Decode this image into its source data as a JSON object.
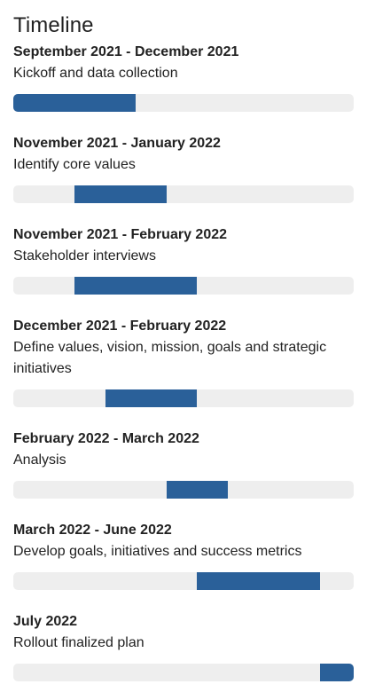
{
  "title": "Timeline",
  "accent_color": "#2a6099",
  "track_color": "#eeeeee",
  "items": [
    {
      "date": "September 2021 - December 2021",
      "description": "Kickoff and data collection",
      "start": 0.0,
      "end": 0.36
    },
    {
      "date": "November 2021 - January 2022",
      "description": "Identify core values",
      "start": 0.18,
      "end": 0.45
    },
    {
      "date": "November 2021 - February 2022",
      "description": "Stakeholder interviews",
      "start": 0.18,
      "end": 0.54
    },
    {
      "date": "December 2021 - February 2022",
      "description": "Define values, vision, mission, goals and strategic initiatives",
      "start": 0.27,
      "end": 0.54
    },
    {
      "date": "February 2022 - March 2022",
      "description": "Analysis",
      "start": 0.45,
      "end": 0.63
    },
    {
      "date": "March 2022 - June 2022",
      "description": "Develop goals, initiatives and success metrics",
      "start": 0.54,
      "end": 0.9
    },
    {
      "date": "July 2022",
      "description": "Rollout finalized plan",
      "start": 0.9,
      "end": 1.0
    }
  ]
}
